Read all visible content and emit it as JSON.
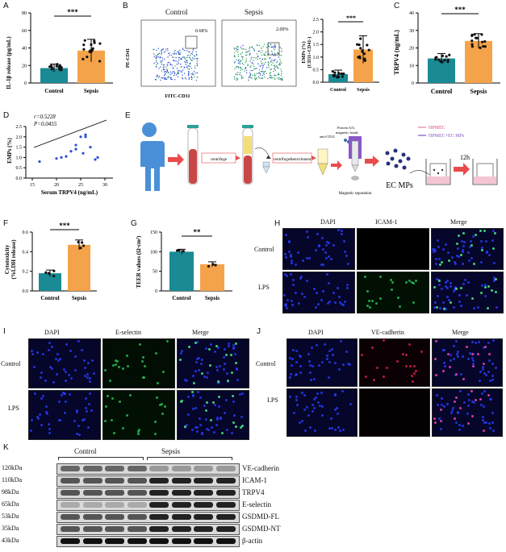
{
  "panels": {
    "A": {
      "label": "A",
      "ylabel": "IL-1β release (pg/mL)",
      "sig": "***",
      "yticks": [
        "0",
        "20",
        "40",
        "60",
        "80"
      ],
      "cats": [
        "Control",
        "Sepsis"
      ],
      "values": [
        17,
        37
      ]
    },
    "B": {
      "label": "B",
      "ctrl_title": "Control",
      "sep_title": "Sepsis",
      "ctrl_pct": "0.68%",
      "sep_pct": "2.09%",
      "ylab": "PE-CD41",
      "xlab": "FITC-CD31",
      "bar_ylabel": "EMPs (%)\n(CD31+CD41-)",
      "bar_ylabel_1": "EMPs (%)",
      "bar_ylabel_2": "(CD31+CD41-)",
      "sig": "***",
      "yticks": [
        "0.0",
        "0.5",
        "1.0",
        "1.5",
        "2.0",
        "2.5"
      ],
      "cats": [
        "Control",
        "Sepsis"
      ],
      "values": [
        0.32,
        1.3
      ]
    },
    "C": {
      "label": "C",
      "ylabel": "TRPV4 (ng/mL)",
      "sig": "***",
      "yticks": [
        "0",
        "10",
        "20",
        "30",
        "40"
      ],
      "cats": [
        "Control",
        "Sepsis"
      ],
      "values": [
        14,
        24
      ]
    },
    "D": {
      "label": "D",
      "r": "r=0.5228",
      "p": "P=0.0455",
      "ylabel": "EMPs (%)",
      "xlabel": "Serum TRPV4 (ng/mL)",
      "xticks": [
        "15",
        "20",
        "25",
        "30"
      ],
      "yticks": [
        "0.0",
        "0.5",
        "1.0",
        "1.5",
        "2.0",
        "2.5"
      ]
    },
    "E": {
      "label": "E",
      "centrifuge": "centrifuge",
      "centrifuge2": "centrifuge&enrichment",
      "anti": "anti-CD31",
      "beads": "Protein A/G\nmagnetic beads",
      "beads_1": "Protein A/G",
      "beads_2": "magnetic beads",
      "magsep": "Magnetic separation",
      "ecmps": "EC MPs",
      "legend1": "HPMEC",
      "legend2": "HPMEC+EC MPs",
      "time": "12h"
    },
    "F": {
      "label": "F",
      "ylabel": "Cytotoxicity\n(%LDH release)",
      "ylabel_1": "Cytotoxicity",
      "ylabel_2": "(%LDH release)",
      "sig": "***",
      "yticks": [
        "0.0",
        "0.2",
        "0.4",
        "0.6"
      ],
      "cats": [
        "Control",
        "Sepsis"
      ],
      "values": [
        0.18,
        0.47
      ]
    },
    "G": {
      "label": "G",
      "ylabel": "TEER values (Ω·cm²)",
      "sig": "**",
      "yticks": [
        "0",
        "50",
        "100",
        "150"
      ],
      "cats": [
        "Control",
        "Sepsis"
      ],
      "values": [
        100,
        68
      ]
    },
    "H": {
      "label": "H",
      "cols": [
        "DAPI",
        "ICAM-1",
        "Merge"
      ],
      "rows": [
        "Control",
        "LPS"
      ]
    },
    "I": {
      "label": "I",
      "cols": [
        "DAPI",
        "E-selectin",
        "Merge"
      ],
      "rows": [
        "Control",
        "LPS"
      ]
    },
    "J": {
      "label": "J",
      "cols": [
        "DAPI",
        "VE-cadherin",
        "Merge"
      ],
      "rows": [
        "Control",
        "LPS"
      ]
    },
    "K": {
      "label": "K",
      "groups": [
        "Control",
        "Sepsis"
      ],
      "kda": [
        "120kDa",
        "110kDa",
        "98kDa",
        "65kDa",
        "53kDa",
        "35kDa",
        "43kDa"
      ],
      "proteins": [
        "VE-cadherin",
        "ICAM-1",
        "TRPV4",
        "E-selectin",
        "GSDMD-FL",
        "GSDMD-NT",
        "β-actin"
      ]
    }
  },
  "colors": {
    "teal": "#1a8a94",
    "orange": "#f5a34a",
    "red_arrow": "#e94b4b",
    "body_blue": "#4a90d9"
  }
}
